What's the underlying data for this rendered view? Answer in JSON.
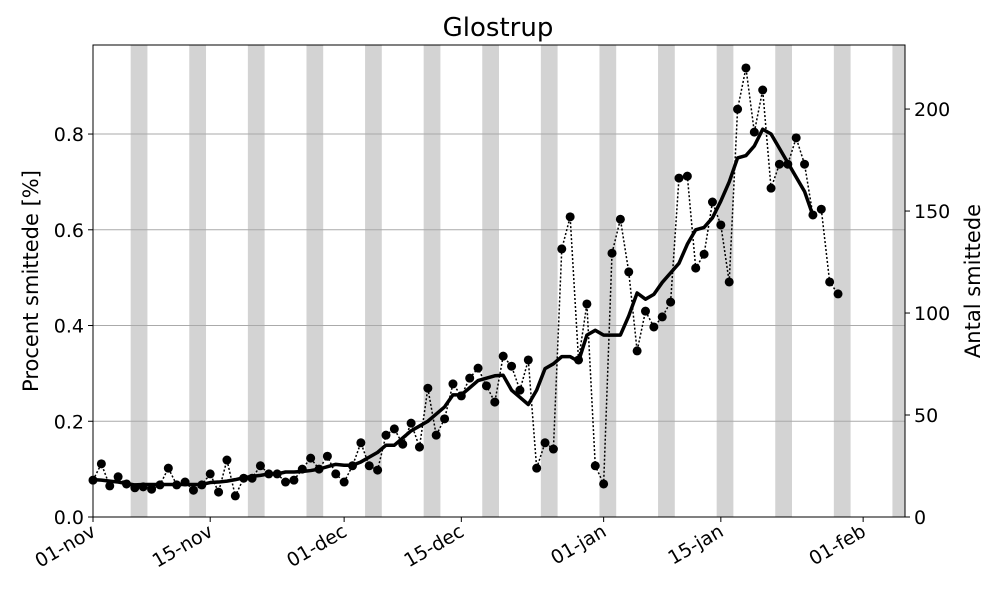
{
  "chart_data": {
    "type": "line",
    "title": "Glostrup",
    "ylabel": "Procent smittede [%]",
    "y2label": "Antal smittede",
    "x": [
      "01-nov",
      "02-nov",
      "03-nov",
      "04-nov",
      "05-nov",
      "06-nov",
      "07-nov",
      "08-nov",
      "09-nov",
      "10-nov",
      "11-nov",
      "12-nov",
      "13-nov",
      "14-nov",
      "15-nov",
      "16-nov",
      "17-nov",
      "18-nov",
      "19-nov",
      "20-nov",
      "21-nov",
      "22-nov",
      "23-nov",
      "24-nov",
      "25-nov",
      "26-nov",
      "27-nov",
      "28-nov",
      "29-nov",
      "30-nov",
      "01-dec",
      "02-dec",
      "03-dec",
      "04-dec",
      "05-dec",
      "06-dec",
      "07-dec",
      "08-dec",
      "09-dec",
      "10-dec",
      "11-dec",
      "12-dec",
      "13-dec",
      "14-dec",
      "15-dec",
      "16-dec",
      "17-dec",
      "18-dec",
      "19-dec",
      "20-dec",
      "21-dec",
      "22-dec",
      "23-dec",
      "24-dec",
      "25-dec",
      "26-dec",
      "27-dec",
      "28-dec",
      "29-dec",
      "30-dec",
      "31-dec",
      "01-jan",
      "02-jan",
      "03-jan",
      "04-jan",
      "05-jan",
      "06-jan",
      "07-jan",
      "08-jan",
      "09-jan",
      "10-jan",
      "11-jan",
      "12-jan",
      "13-jan",
      "14-jan",
      "15-jan",
      "16-jan",
      "17-jan",
      "18-jan",
      "19-jan",
      "20-jan",
      "21-jan",
      "22-jan",
      "23-jan",
      "24-jan",
      "25-jan",
      "26-jan",
      "27-jan",
      "28-jan",
      "29-jan"
    ],
    "series": [
      {
        "name": "daily",
        "style": "dotted-markers",
        "color": "#000000",
        "values": [
          0.077,
          0.111,
          0.065,
          0.084,
          0.069,
          0.061,
          0.063,
          0.058,
          0.067,
          0.102,
          0.067,
          0.073,
          0.056,
          0.067,
          0.09,
          0.052,
          0.119,
          0.044,
          0.081,
          0.081,
          0.107,
          0.09,
          0.09,
          0.073,
          0.077,
          0.1,
          0.123,
          0.1,
          0.127,
          0.09,
          0.073,
          0.107,
          0.155,
          0.107,
          0.098,
          0.171,
          0.184,
          0.152,
          0.196,
          0.146,
          0.269,
          0.171,
          0.205,
          0.278,
          0.253,
          0.29,
          0.311,
          0.274,
          0.24,
          0.336,
          0.315,
          0.265,
          0.328,
          0.102,
          0.155,
          0.142,
          0.56,
          0.627,
          0.328,
          0.445,
          0.107,
          0.069,
          0.551,
          0.622,
          0.512,
          0.347,
          0.43,
          0.397,
          0.418,
          0.449,
          0.708,
          0.712,
          0.52,
          0.549,
          0.658,
          0.61,
          0.491,
          0.852,
          0.938,
          0.804,
          0.892,
          0.687,
          0.737,
          0.737,
          0.792,
          0.737,
          0.631,
          0.643,
          0.491,
          0.466
        ]
      },
      {
        "name": "rolling",
        "style": "solid",
        "color": "#000000",
        "values": [
          0.078,
          0.077,
          0.075,
          0.073,
          0.07,
          0.067,
          0.068,
          0.068,
          0.068,
          0.068,
          0.068,
          0.068,
          0.068,
          0.068,
          0.072,
          0.073,
          0.075,
          0.078,
          0.082,
          0.085,
          0.087,
          0.09,
          0.09,
          0.094,
          0.094,
          0.095,
          0.097,
          0.1,
          0.105,
          0.11,
          0.108,
          0.108,
          0.115,
          0.125,
          0.135,
          0.15,
          0.15,
          0.165,
          0.18,
          0.19,
          0.2,
          0.215,
          0.23,
          0.255,
          0.255,
          0.27,
          0.285,
          0.29,
          0.295,
          0.296,
          0.265,
          0.25,
          0.235,
          0.265,
          0.31,
          0.32,
          0.335,
          0.335,
          0.325,
          0.38,
          0.39,
          0.38,
          0.38,
          0.38,
          0.42,
          0.468,
          0.455,
          0.465,
          0.49,
          0.51,
          0.53,
          0.57,
          0.6,
          0.605,
          0.625,
          0.66,
          0.7,
          0.75,
          0.755,
          0.775,
          0.81,
          0.8,
          0.77,
          0.74,
          0.71,
          0.68,
          0.63,
          null,
          null,
          null
        ]
      }
    ],
    "xlim": [
      "01-nov",
      "06-feb"
    ],
    "xticks": [
      "01-nov",
      "15-nov",
      "01-dec",
      "15-dec",
      "01-jan",
      "15-jan",
      "01-feb"
    ],
    "ylim": [
      0,
      0.986
    ],
    "yticks": [
      {
        "value": 0,
        "label": "0.0"
      },
      0.2,
      0.4,
      0.6,
      0.8
    ],
    "y2lim": [
      0,
      231.4
    ],
    "y2ticks": [
      0,
      50,
      100,
      150,
      200
    ],
    "grid": true,
    "weekend_shading": true,
    "shade_color": "#d3d3d3"
  }
}
